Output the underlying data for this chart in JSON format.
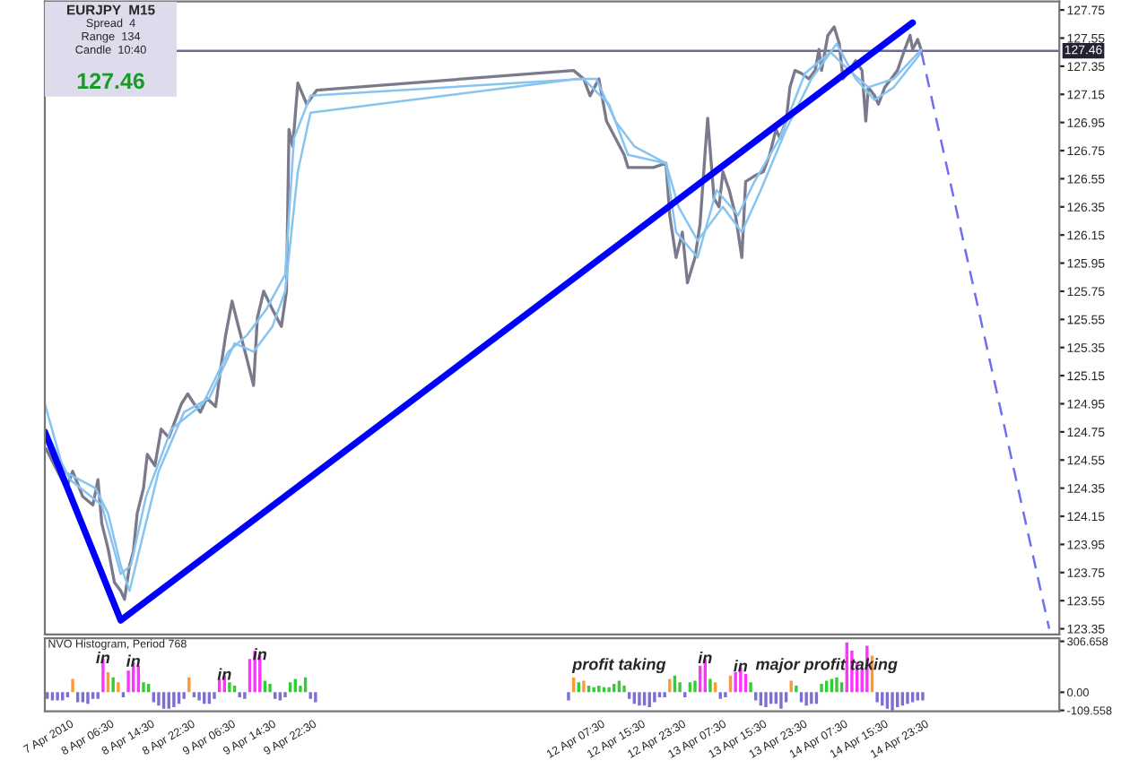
{
  "chart_data": [
    {
      "type": "line",
      "xlim": [
        "2010-04-07T17:30",
        "2010-04-16T02:00"
      ],
      "ylim": [
        123.31,
        127.81
      ],
      "yticks": [
        127.75,
        127.55,
        127.35,
        127.15,
        126.95,
        126.75,
        126.55,
        126.35,
        126.15,
        125.95,
        125.75,
        125.55,
        125.35,
        125.15,
        124.95,
        124.75,
        124.55,
        124.35,
        124.15,
        123.95,
        123.75,
        123.55,
        123.35
      ],
      "tick_labels": "y",
      "marker": "none",
      "series": [
        {
          "color": "#7a7a8c",
          "x": [
            "2010-04-07T17:45",
            "2010-04-07T20:00",
            "2010-04-07T21:45",
            "2010-04-07T23:00",
            "2010-04-08T01:00",
            "2010-04-08T03:00",
            "2010-04-08T04:00",
            "2010-04-08T04:45",
            "2010-04-08T06:00",
            "2010-04-08T07:15",
            "2010-04-08T08:30",
            "2010-04-08T09:15",
            "2010-04-08T10:15",
            "2010-04-08T11:00",
            "2010-04-08T11:45",
            "2010-04-08T13:00",
            "2010-04-08T13:45",
            "2010-04-08T15:15",
            "2010-04-08T16:30",
            "2010-04-08T18:00",
            "2010-04-08T19:15",
            "2010-04-08T20:30",
            "2010-04-08T21:45",
            "2010-04-08T23:00",
            "2010-04-09T00:15",
            "2010-04-09T01:30",
            "2010-04-09T03:15",
            "2010-04-09T04:15",
            "2010-04-09T05:15",
            "2010-04-09T06:30",
            "2010-04-09T07:45",
            "2010-04-09T09:30",
            "2010-04-09T10:45",
            "2010-04-09T11:30",
            "2010-04-09T12:45",
            "2010-04-09T14:30",
            "2010-04-09T16:15",
            "2010-04-09T17:15",
            "2010-04-09T17:45",
            "2010-04-09T18:30",
            "2010-04-09T19:30",
            "2010-04-09T21:15",
            "2010-04-09T23:15",
            "2010-04-12T02:00",
            "2010-04-12T04:00",
            "2010-04-12T05:15",
            "2010-04-12T07:00",
            "2010-04-12T08:30",
            "2010-04-12T10:15",
            "2010-04-12T12:00",
            "2010-04-12T12:45",
            "2010-04-12T15:15",
            "2010-04-12T17:45",
            "2010-04-12T20:15",
            "2010-04-12T21:00",
            "2010-04-12T22:15",
            "2010-04-12T23:30",
            "2010-04-13T00:30",
            "2010-04-13T02:00",
            "2010-04-13T03:00",
            "2010-04-13T04:00",
            "2010-04-13T04:30",
            "2010-04-13T05:45",
            "2010-04-13T06:45",
            "2010-04-13T07:30",
            "2010-04-13T08:45",
            "2010-04-13T10:00",
            "2010-04-13T10:45",
            "2010-04-13T11:15",
            "2010-04-13T12:00",
            "2010-04-13T13:45",
            "2010-04-13T15:30",
            "2010-04-13T16:45",
            "2010-04-13T18:00",
            "2010-04-13T18:45",
            "2010-04-13T20:00",
            "2010-04-13T20:45",
            "2010-04-13T21:45",
            "2010-04-13T23:00",
            "2010-04-14T00:30",
            "2010-04-14T01:45",
            "2010-04-14T02:30",
            "2010-04-14T03:00",
            "2010-04-14T04:15",
            "2010-04-14T05:30",
            "2010-04-14T06:30",
            "2010-04-14T07:15",
            "2010-04-14T08:30",
            "2010-04-14T09:45",
            "2010-04-14T11:00",
            "2010-04-14T11:45",
            "2010-04-14T12:15",
            "2010-04-14T13:30",
            "2010-04-14T14:15",
            "2010-04-14T15:30",
            "2010-04-14T16:45",
            "2010-04-14T18:00",
            "2010-04-14T19:15",
            "2010-04-14T20:30",
            "2010-04-14T21:00",
            "2010-04-14T22:00",
            "2010-04-14T22:45"
          ],
          "values": [
            124.63,
            124.47,
            124.35,
            124.47,
            124.29,
            124.23,
            124.41,
            124.1,
            123.92,
            123.68,
            123.62,
            123.56,
            123.8,
            123.9,
            124.17,
            124.35,
            124.59,
            124.51,
            124.77,
            124.71,
            124.83,
            124.95,
            125.02,
            124.95,
            124.89,
            124.99,
            124.93,
            125.2,
            125.44,
            125.68,
            125.5,
            125.26,
            125.08,
            125.56,
            125.75,
            125.62,
            125.5,
            125.75,
            126.9,
            126.78,
            127.23,
            127.08,
            127.18,
            127.32,
            127.26,
            127.14,
            127.26,
            126.96,
            126.84,
            126.72,
            126.63,
            126.63,
            126.63,
            126.66,
            126.29,
            125.99,
            126.17,
            125.81,
            125.99,
            126.23,
            126.74,
            126.98,
            126.41,
            126.35,
            126.6,
            126.47,
            126.29,
            126.11,
            125.99,
            126.53,
            126.57,
            126.6,
            126.72,
            126.9,
            126.84,
            126.96,
            127.2,
            127.32,
            127.3,
            127.26,
            127.32,
            127.47,
            127.32,
            127.57,
            127.63,
            127.51,
            127.26,
            127.32,
            127.39,
            127.32,
            126.96,
            127.2,
            127.14,
            127.08,
            127.2,
            127.26,
            127.32,
            127.45,
            127.57,
            127.47,
            127.54,
            127.46
          ]
        },
        {
          "color": "#87c4f0",
          "x": [
            "2010-04-07T17:30",
            "2010-04-07T21:15",
            "2010-04-08T03:30",
            "2010-04-08T06:00",
            "2010-04-08T08:30",
            "2010-04-08T10:15",
            "2010-04-08T12:15",
            "2010-04-08T16:00",
            "2010-04-08T21:00",
            "2010-04-09T02:00",
            "2010-04-09T07:00",
            "2010-04-09T10:45",
            "2010-04-09T14:30",
            "2010-04-09T17:00",
            "2010-04-09T19:30",
            "2010-04-09T22:00",
            "2010-04-12T02:45",
            "2010-04-12T06:30",
            "2010-04-12T10:15",
            "2010-04-12T14:00",
            "2010-04-12T20:15",
            "2010-04-12T22:45",
            "2010-04-13T02:30",
            "2010-04-13T07:30",
            "2010-04-13T11:15",
            "2010-04-13T15:00",
            "2010-04-13T20:00",
            "2010-04-14T01:00",
            "2010-04-14T06:00",
            "2010-04-14T09:45",
            "2010-04-14T13:30",
            "2010-04-14T17:15",
            "2010-04-14T22:45"
          ],
          "values": [
            124.95,
            124.47,
            124.35,
            124.17,
            123.8,
            123.62,
            123.92,
            124.47,
            124.89,
            124.99,
            125.38,
            125.32,
            125.5,
            125.75,
            126.6,
            127.02,
            127.26,
            127.26,
            126.96,
            126.78,
            126.66,
            126.35,
            126.11,
            126.35,
            126.17,
            126.47,
            126.9,
            127.26,
            127.51,
            127.26,
            127.11,
            127.2,
            127.45
          ]
        },
        {
          "color": "#87c4f0",
          "x": [
            "2010-04-07T17:30",
            "2010-04-07T22:30",
            "2010-04-08T04:45",
            "2010-04-08T08:30",
            "2010-04-08T10:30",
            "2010-04-08T13:30",
            "2010-04-08T18:30",
            "2010-04-09T00:45",
            "2010-04-09T05:45",
            "2010-04-09T09:30",
            "2010-04-09T13:15",
            "2010-04-09T17:00",
            "2010-04-09T18:45",
            "2010-04-09T22:00",
            "2010-04-12T04:00",
            "2010-04-12T09:00",
            "2010-04-12T12:45",
            "2010-04-12T20:15",
            "2010-04-12T22:15",
            "2010-04-13T02:30",
            "2010-04-13T06:15",
            "2010-04-13T10:30",
            "2010-04-13T13:45",
            "2010-04-13T18:45",
            "2010-04-13T23:45",
            "2010-04-14T04:45",
            "2010-04-14T08:30",
            "2010-04-14T12:15",
            "2010-04-14T17:15",
            "2010-04-14T22:45"
          ],
          "values": [
            124.77,
            124.41,
            124.23,
            123.74,
            123.8,
            124.29,
            124.77,
            124.95,
            125.32,
            125.44,
            125.62,
            125.87,
            126.84,
            127.14,
            127.26,
            127.08,
            126.72,
            126.66,
            126.17,
            125.99,
            126.47,
            126.29,
            126.53,
            126.84,
            127.3,
            127.45,
            127.32,
            127.2,
            127.26,
            127.47
          ]
        },
        {
          "color": "#0000ff",
          "x": [
            "2010-04-07T17:30",
            "2010-04-08T08:30",
            "2010-04-14T21:00"
          ],
          "values": [
            124.75,
            123.41,
            127.66
          ]
        },
        {
          "color": "#6e6ef5",
          "x": [
            "2010-04-14T22:45",
            "2010-04-16T00:00"
          ],
          "values": [
            127.45,
            123.35
          ],
          "line_style": "dashed"
        }
      ],
      "ref_lines": [
        {
          "axis": "y",
          "value": 127.46,
          "label": "127.46",
          "color": "#6a6a9a"
        }
      ],
      "annotations": [
        "EURJPY  M15",
        "Spread  4",
        "Range  134",
        "Candle  10:40",
        "127.46"
      ]
    },
    {
      "type": "bar",
      "title": "NVO Histogram, Period 768",
      "xlim": [
        "2010-04-07T17:30",
        "2010-04-16T02:00"
      ],
      "ylim": [
        -115,
        325
      ],
      "yticks": [
        306.658,
        {
          "value": 0,
          "label": "0.00"
        },
        -109.558
      ],
      "xticks": [
        {
          "value": "2010-04-07T22:30",
          "label": "7 Apr 2010"
        },
        {
          "value": "2010-04-08T06:30",
          "label": "8 Apr 06:30"
        },
        {
          "value": "2010-04-08T14:30",
          "label": "8 Apr 14:30"
        },
        {
          "value": "2010-04-08T22:30",
          "label": "8 Apr 22:30"
        },
        {
          "value": "2010-04-09T06:30",
          "label": "9 Apr 06:30"
        },
        {
          "value": "2010-04-09T14:30",
          "label": "9 Apr 14:30"
        },
        {
          "value": "2010-04-09T22:30",
          "label": "9 Apr 22:30"
        },
        {
          "value": "2010-04-12T07:30",
          "label": "12 Apr 07:30"
        },
        {
          "value": "2010-04-12T15:30",
          "label": "12 Apr 15:30"
        },
        {
          "value": "2010-04-12T23:30",
          "label": "12 Apr 23:30"
        },
        {
          "value": "2010-04-13T07:30",
          "label": "13 Apr 07:30"
        },
        {
          "value": "2010-04-13T15:30",
          "label": "13 Apr 15:30"
        },
        {
          "value": "2010-04-13T23:30",
          "label": "13 Apr 23:30"
        },
        {
          "value": "2010-04-14T07:30",
          "label": "14 Apr 07:30"
        },
        {
          "value": "2010-04-14T15:30",
          "label": "14 Apr 15:30"
        },
        {
          "value": "2010-04-14T23:30",
          "label": "14 Apr 23:30"
        }
      ],
      "x": [
        "2010-04-07T18:00",
        "2010-04-07T19:00",
        "2010-04-07T20:00",
        "2010-04-07T21:00",
        "2010-04-07T22:00",
        "2010-04-07T23:00",
        "2010-04-08T00:00",
        "2010-04-08T01:00",
        "2010-04-08T02:00",
        "2010-04-08T03:00",
        "2010-04-08T04:00",
        "2010-04-08T05:00",
        "2010-04-08T06:00",
        "2010-04-08T07:00",
        "2010-04-08T08:00",
        "2010-04-08T09:00",
        "2010-04-08T10:00",
        "2010-04-08T11:00",
        "2010-04-08T12:00",
        "2010-04-08T13:00",
        "2010-04-08T14:00",
        "2010-04-08T15:00",
        "2010-04-08T16:00",
        "2010-04-08T17:00",
        "2010-04-08T18:00",
        "2010-04-08T19:00",
        "2010-04-08T20:00",
        "2010-04-08T21:00",
        "2010-04-08T22:00",
        "2010-04-08T23:00",
        "2010-04-09T00:00",
        "2010-04-09T01:00",
        "2010-04-09T02:00",
        "2010-04-09T03:00",
        "2010-04-09T04:00",
        "2010-04-09T05:00",
        "2010-04-09T06:00",
        "2010-04-09T07:00",
        "2010-04-09T08:00",
        "2010-04-09T09:00",
        "2010-04-09T10:00",
        "2010-04-09T11:00",
        "2010-04-09T12:00",
        "2010-04-09T13:00",
        "2010-04-09T14:00",
        "2010-04-09T15:00",
        "2010-04-09T16:00",
        "2010-04-09T17:00",
        "2010-04-09T18:00",
        "2010-04-09T19:00",
        "2010-04-09T20:00",
        "2010-04-09T21:00",
        "2010-04-09T22:00",
        "2010-04-09T23:00",
        "2010-04-12T01:00",
        "2010-04-12T02:00",
        "2010-04-12T03:00",
        "2010-04-12T04:00",
        "2010-04-12T05:00",
        "2010-04-12T06:00",
        "2010-04-12T07:00",
        "2010-04-12T08:00",
        "2010-04-12T09:00",
        "2010-04-12T10:00",
        "2010-04-12T11:00",
        "2010-04-12T12:00",
        "2010-04-12T13:00",
        "2010-04-12T14:00",
        "2010-04-12T15:00",
        "2010-04-12T16:00",
        "2010-04-12T17:00",
        "2010-04-12T18:00",
        "2010-04-12T19:00",
        "2010-04-12T20:00",
        "2010-04-12T21:00",
        "2010-04-12T22:00",
        "2010-04-12T23:00",
        "2010-04-13T00:00",
        "2010-04-13T01:00",
        "2010-04-13T02:00",
        "2010-04-13T03:00",
        "2010-04-13T04:00",
        "2010-04-13T05:00",
        "2010-04-13T06:00",
        "2010-04-13T07:00",
        "2010-04-13T08:00",
        "2010-04-13T09:00",
        "2010-04-13T10:00",
        "2010-04-13T11:00",
        "2010-04-13T12:00",
        "2010-04-13T13:00",
        "2010-04-13T14:00",
        "2010-04-13T15:00",
        "2010-04-13T16:00",
        "2010-04-13T17:00",
        "2010-04-13T18:00",
        "2010-04-13T19:00",
        "2010-04-13T20:00",
        "2010-04-13T21:00",
        "2010-04-13T22:00",
        "2010-04-13T23:00",
        "2010-04-14T00:00",
        "2010-04-14T01:00",
        "2010-04-14T02:00",
        "2010-04-14T03:00",
        "2010-04-14T04:00",
        "2010-04-14T05:00",
        "2010-04-14T06:00",
        "2010-04-14T07:00",
        "2010-04-14T08:00",
        "2010-04-14T09:00",
        "2010-04-14T10:00",
        "2010-04-14T11:00",
        "2010-04-14T12:00",
        "2010-04-14T13:00",
        "2010-04-14T14:00",
        "2010-04-14T15:00",
        "2010-04-14T16:00",
        "2010-04-14T17:00",
        "2010-04-14T18:00",
        "2010-04-14T19:00",
        "2010-04-14T20:00",
        "2010-04-14T21:00",
        "2010-04-14T22:00",
        "2010-04-14T23:00"
      ],
      "values": [
        -40,
        -50,
        -50,
        -50,
        -30,
        80,
        -60,
        -60,
        -70,
        -40,
        -40,
        200,
        120,
        90,
        60,
        -30,
        130,
        180,
        160,
        60,
        50,
        -60,
        -80,
        -100,
        -100,
        -90,
        -70,
        -40,
        90,
        -30,
        -50,
        -70,
        -70,
        -40,
        80,
        100,
        60,
        40,
        -30,
        -40,
        200,
        250,
        220,
        70,
        50,
        -40,
        -50,
        -30,
        60,
        80,
        40,
        90,
        -40,
        -60,
        -50,
        90,
        60,
        70,
        40,
        30,
        40,
        30,
        30,
        50,
        70,
        40,
        -40,
        -70,
        -80,
        -80,
        -90,
        -60,
        -30,
        -30,
        80,
        100,
        60,
        -30,
        60,
        70,
        160,
        200,
        80,
        60,
        -40,
        -30,
        100,
        120,
        150,
        110,
        60,
        -50,
        -80,
        -90,
        -70,
        -70,
        -100,
        -60,
        70,
        40,
        -60,
        -80,
        -70,
        -70,
        50,
        70,
        80,
        90,
        60,
        300,
        250,
        180,
        150,
        280,
        220,
        -60,
        -80,
        -100,
        -110,
        -90,
        -80,
        -70,
        -60,
        -50,
        -50
      ],
      "colors": [
        "#7b6fd0",
        "#7b6fd0",
        "#7b6fd0",
        "#7b6fd0",
        "#7b6fd0",
        "#ff9933",
        "#7b6fd0",
        "#7b6fd0",
        "#7b6fd0",
        "#7b6fd0",
        "#7b6fd0",
        "#ff33ff",
        "#ff9933",
        "#33cc33",
        "#ff9933",
        "#7b6fd0",
        "#ff33ff",
        "#ff33ff",
        "#ff33ff",
        "#33cc33",
        "#33cc33",
        "#7b6fd0",
        "#7b6fd0",
        "#7b6fd0",
        "#7b6fd0",
        "#7b6fd0",
        "#7b6fd0",
        "#7b6fd0",
        "#ff9933",
        "#7b6fd0",
        "#7b6fd0",
        "#7b6fd0",
        "#7b6fd0",
        "#7b6fd0",
        "#ff33ff",
        "#ff33ff",
        "#33cc33",
        "#33cc33",
        "#7b6fd0",
        "#7b6fd0",
        "#ff33ff",
        "#ff33ff",
        "#ff33ff",
        "#33cc33",
        "#33cc33",
        "#7b6fd0",
        "#7b6fd0",
        "#7b6fd0",
        "#33cc33",
        "#33cc33",
        "#33cc33",
        "#33cc33",
        "#7b6fd0",
        "#7b6fd0",
        "#7b6fd0",
        "#ff9933",
        "#33cc33",
        "#ff9933",
        "#33cc33",
        "#33cc33",
        "#33cc33",
        "#33cc33",
        "#33cc33",
        "#33cc33",
        "#33cc33",
        "#33cc33",
        "#7b6fd0",
        "#7b6fd0",
        "#7b6fd0",
        "#7b6fd0",
        "#7b6fd0",
        "#7b6fd0",
        "#7b6fd0",
        "#7b6fd0",
        "#ff9933",
        "#33cc33",
        "#33cc33",
        "#7b6fd0",
        "#33cc33",
        "#33cc33",
        "#ff33ff",
        "#ff33ff",
        "#33cc33",
        "#ff9933",
        "#7b6fd0",
        "#7b6fd0",
        "#ff9933",
        "#ff33ff",
        "#ff33ff",
        "#ff33ff",
        "#33cc33",
        "#7b6fd0",
        "#7b6fd0",
        "#7b6fd0",
        "#7b6fd0",
        "#7b6fd0",
        "#7b6fd0",
        "#7b6fd0",
        "#ff9933",
        "#33cc33",
        "#7b6fd0",
        "#7b6fd0",
        "#7b6fd0",
        "#7b6fd0",
        "#33cc33",
        "#33cc33",
        "#33cc33",
        "#33cc33",
        "#33cc33",
        "#ff33ff",
        "#ff33ff",
        "#ff33ff",
        "#ff33ff",
        "#ff33ff",
        "#ff9933",
        "#7b6fd0",
        "#7b6fd0",
        "#7b6fd0",
        "#7b6fd0",
        "#7b6fd0",
        "#7b6fd0",
        "#7b6fd0",
        "#7b6fd0",
        "#7b6fd0",
        "#7b6fd0"
      ],
      "annotations": [
        {
          "text": "in",
          "x": "2010-04-08T05:00",
          "y": 200
        },
        {
          "text": "in",
          "x": "2010-04-08T11:00",
          "y": 180
        },
        {
          "text": "in",
          "x": "2010-04-09T05:00",
          "y": 100
        },
        {
          "text": "in",
          "x": "2010-04-09T12:00",
          "y": 220
        },
        {
          "text": "profit taking",
          "x": "2010-04-12T11:00",
          "y": 70
        },
        {
          "text": "in",
          "x": "2010-04-13T04:00",
          "y": 200
        },
        {
          "text": "in",
          "x": "2010-04-13T11:00",
          "y": 150
        },
        {
          "text": "major profit taking",
          "x": "2010-04-14T04:00",
          "y": 70
        }
      ]
    }
  ]
}
